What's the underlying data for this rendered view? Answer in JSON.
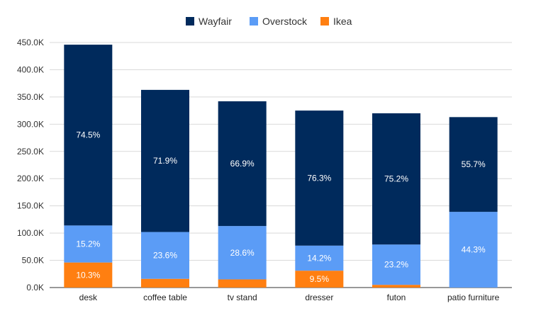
{
  "chart_data": {
    "type": "bar",
    "stacked": true,
    "categories": [
      "desk",
      "coffee table",
      "tv stand",
      "dresser",
      "futon",
      "patio furniture"
    ],
    "series": [
      {
        "name": "Ikea",
        "color": "#ff7f11",
        "values": [
          46000,
          16000,
          15000,
          31000,
          5000,
          0
        ]
      },
      {
        "name": "Overstock",
        "color": "#5b9cf6",
        "values": [
          68000,
          86000,
          98000,
          46000,
          74000,
          139000
        ]
      },
      {
        "name": "Wayfair",
        "color": "#002a5c",
        "values": [
          332000,
          261000,
          229000,
          248000,
          241000,
          174000
        ]
      }
    ],
    "segment_labels": [
      [
        "10.3%",
        "",
        "",
        "9.5%",
        "",
        ""
      ],
      [
        "15.2%",
        "23.6%",
        "28.6%",
        "14.2%",
        "23.2%",
        "44.3%"
      ],
      [
        "74.5%",
        "71.9%",
        "66.9%",
        "76.3%",
        "75.2%",
        "55.7%"
      ]
    ],
    "legend": [
      "Wayfair",
      "Overstock",
      "Ikea"
    ],
    "legend_position": "top",
    "ylim": [
      0,
      450000
    ],
    "yticks": [
      "0.0K",
      "50.0K",
      "100.0K",
      "150.0K",
      "200.0K",
      "250.0K",
      "300.0K",
      "350.0K",
      "400.0K",
      "450.0K"
    ],
    "grid": true,
    "title": "",
    "xlabel": "",
    "ylabel": ""
  }
}
